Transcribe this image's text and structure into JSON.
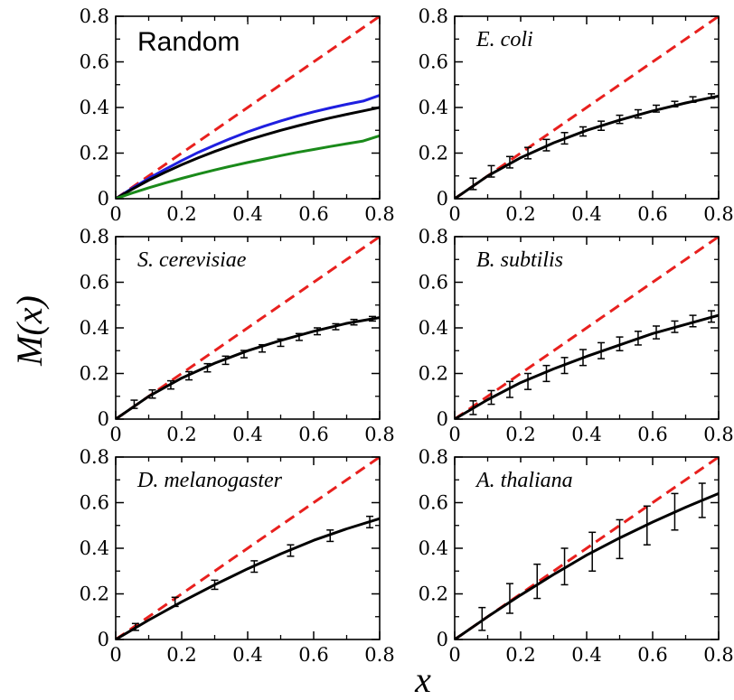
{
  "figure": {
    "ylabel": "M(x)",
    "xlabel": "x"
  },
  "colors": {
    "diagonal": "#e8201e",
    "fit": "#000000",
    "blue": "#1f1fe0",
    "green": "#1a8a1a"
  },
  "chart_data": [
    {
      "type": "line",
      "title": "Random",
      "xlim": [
        0,
        0.8
      ],
      "ylim": [
        0,
        0.8
      ],
      "xticks": [
        "0",
        "0.2",
        "0.4",
        "0.6",
        "0.8"
      ],
      "yticks": [
        "0",
        "0.2",
        "0.4",
        "0.6",
        "0.8"
      ],
      "series": [
        {
          "style": "dashed-red",
          "x": [
            0,
            0.8
          ],
          "y": [
            0,
            0.8
          ]
        },
        {
          "style": "solid-blue",
          "x": [
            0,
            0.05,
            0.1,
            0.15,
            0.2,
            0.25,
            0.3,
            0.35,
            0.4,
            0.45,
            0.5,
            0.55,
            0.6,
            0.65,
            0.7,
            0.75,
            0.8
          ],
          "y": [
            0,
            0.046,
            0.089,
            0.129,
            0.167,
            0.203,
            0.235,
            0.265,
            0.293,
            0.318,
            0.341,
            0.362,
            0.381,
            0.398,
            0.414,
            0.428,
            0.453
          ]
        },
        {
          "style": "solid-black",
          "x": [
            0,
            0.05,
            0.1,
            0.15,
            0.2,
            0.25,
            0.3,
            0.35,
            0.4,
            0.45,
            0.5,
            0.55,
            0.6,
            0.65,
            0.7,
            0.75,
            0.8
          ],
          "y": [
            0,
            0.042,
            0.081,
            0.116,
            0.149,
            0.179,
            0.207,
            0.233,
            0.257,
            0.279,
            0.3,
            0.319,
            0.337,
            0.354,
            0.37,
            0.385,
            0.4
          ]
        },
        {
          "style": "solid-green",
          "x": [
            0,
            0.05,
            0.1,
            0.15,
            0.2,
            0.25,
            0.3,
            0.35,
            0.4,
            0.45,
            0.5,
            0.55,
            0.6,
            0.65,
            0.7,
            0.75,
            0.8
          ],
          "y": [
            0,
            0.025,
            0.048,
            0.069,
            0.089,
            0.108,
            0.126,
            0.143,
            0.159,
            0.174,
            0.189,
            0.203,
            0.216,
            0.229,
            0.241,
            0.253,
            0.276
          ]
        }
      ]
    },
    {
      "type": "line",
      "title": "E. coli",
      "xlim": [
        0,
        0.8
      ],
      "ylim": [
        0,
        0.8
      ],
      "xticks": [
        "0",
        "0.2",
        "0.4",
        "0.6",
        "0.8"
      ],
      "yticks": [
        "0",
        "0.2",
        "0.4",
        "0.6",
        "0.8"
      ],
      "series": [
        {
          "style": "dashed-red",
          "x": [
            0,
            0.8
          ],
          "y": [
            0,
            0.8
          ]
        },
        {
          "style": "solid-black",
          "x": [
            0,
            0.1,
            0.2,
            0.3,
            0.4,
            0.5,
            0.6,
            0.7,
            0.8
          ],
          "y": [
            0,
            0.1,
            0.18,
            0.245,
            0.3,
            0.345,
            0.385,
            0.42,
            0.45
          ]
        },
        {
          "style": "errorbars",
          "x": [
            0.056,
            0.111,
            0.167,
            0.222,
            0.278,
            0.333,
            0.389,
            0.444,
            0.5,
            0.556,
            0.611,
            0.667,
            0.722,
            0.778
          ],
          "y": [
            0.065,
            0.12,
            0.16,
            0.2,
            0.235,
            0.265,
            0.295,
            0.32,
            0.348,
            0.372,
            0.395,
            0.415,
            0.435,
            0.45
          ],
          "err": [
            0.025,
            0.025,
            0.025,
            0.025,
            0.025,
            0.025,
            0.02,
            0.02,
            0.018,
            0.018,
            0.015,
            0.012,
            0.012,
            0.01
          ]
        }
      ]
    },
    {
      "type": "line",
      "title": "S. cerevisiae",
      "xlim": [
        0,
        0.8
      ],
      "ylim": [
        0,
        0.8
      ],
      "xticks": [
        "0",
        "0.2",
        "0.4",
        "0.6",
        "0.8"
      ],
      "yticks": [
        "0",
        "0.2",
        "0.4",
        "0.6",
        "0.8"
      ],
      "series": [
        {
          "style": "dashed-red",
          "x": [
            0,
            0.8
          ],
          "y": [
            0,
            0.8
          ]
        },
        {
          "style": "solid-black",
          "x": [
            0,
            0.1,
            0.2,
            0.3,
            0.4,
            0.5,
            0.6,
            0.7,
            0.8
          ],
          "y": [
            0,
            0.1,
            0.18,
            0.245,
            0.3,
            0.345,
            0.385,
            0.42,
            0.445
          ]
        },
        {
          "style": "errorbars",
          "x": [
            0.056,
            0.111,
            0.167,
            0.222,
            0.278,
            0.333,
            0.389,
            0.444,
            0.5,
            0.556,
            0.611,
            0.667,
            0.722,
            0.778
          ],
          "y": [
            0.065,
            0.11,
            0.15,
            0.19,
            0.225,
            0.258,
            0.285,
            0.31,
            0.335,
            0.36,
            0.385,
            0.405,
            0.425,
            0.44
          ],
          "err": [
            0.018,
            0.018,
            0.018,
            0.018,
            0.018,
            0.018,
            0.016,
            0.016,
            0.016,
            0.015,
            0.015,
            0.013,
            0.012,
            0.01
          ]
        }
      ]
    },
    {
      "type": "line",
      "title": "B. subtilis",
      "xlim": [
        0,
        0.8
      ],
      "ylim": [
        0,
        0.8
      ],
      "xticks": [
        "0",
        "0.2",
        "0.4",
        "0.6",
        "0.8"
      ],
      "yticks": [
        "0",
        "0.2",
        "0.4",
        "0.6",
        "0.8"
      ],
      "series": [
        {
          "style": "dashed-red",
          "x": [
            0,
            0.8
          ],
          "y": [
            0,
            0.8
          ]
        },
        {
          "style": "solid-black",
          "x": [
            0,
            0.1,
            0.2,
            0.3,
            0.4,
            0.5,
            0.6,
            0.7,
            0.8
          ],
          "y": [
            0,
            0.085,
            0.16,
            0.22,
            0.275,
            0.325,
            0.375,
            0.415,
            0.455
          ]
        },
        {
          "style": "errorbars",
          "x": [
            0.056,
            0.111,
            0.167,
            0.222,
            0.278,
            0.333,
            0.389,
            0.444,
            0.5,
            0.556,
            0.611,
            0.667,
            0.722,
            0.778
          ],
          "y": [
            0.05,
            0.095,
            0.13,
            0.165,
            0.2,
            0.235,
            0.27,
            0.3,
            0.33,
            0.355,
            0.38,
            0.405,
            0.43,
            0.45
          ],
          "err": [
            0.03,
            0.03,
            0.035,
            0.035,
            0.035,
            0.035,
            0.035,
            0.035,
            0.03,
            0.03,
            0.028,
            0.025,
            0.025,
            0.025
          ]
        }
      ]
    },
    {
      "type": "line",
      "title": "D. melanogaster",
      "xlim": [
        0,
        0.8
      ],
      "ylim": [
        0,
        0.8
      ],
      "xticks": [
        "0",
        "0.2",
        "0.4",
        "0.6",
        "0.8"
      ],
      "yticks": [
        "0",
        "0.2",
        "0.4",
        "0.6",
        "0.8"
      ],
      "series": [
        {
          "style": "dashed-red",
          "x": [
            0,
            0.8
          ],
          "y": [
            0,
            0.8
          ]
        },
        {
          "style": "solid-black",
          "x": [
            0,
            0.1,
            0.2,
            0.3,
            0.4,
            0.5,
            0.6,
            0.7,
            0.8
          ],
          "y": [
            0,
            0.085,
            0.165,
            0.24,
            0.31,
            0.375,
            0.435,
            0.485,
            0.53
          ]
        },
        {
          "style": "errorbars",
          "x": [
            0.06,
            0.18,
            0.3,
            0.42,
            0.53,
            0.65,
            0.77
          ],
          "y": [
            0.055,
            0.165,
            0.24,
            0.32,
            0.39,
            0.455,
            0.515
          ],
          "err": [
            0.015,
            0.02,
            0.02,
            0.025,
            0.025,
            0.025,
            0.025
          ]
        }
      ]
    },
    {
      "type": "line",
      "title": "A. thaliana",
      "xlim": [
        0,
        0.8
      ],
      "ylim": [
        0,
        0.8
      ],
      "xticks": [
        "0",
        "0.2",
        "0.4",
        "0.6",
        "0.8"
      ],
      "yticks": [
        "0",
        "0.2",
        "0.4",
        "0.6",
        "0.8"
      ],
      "series": [
        {
          "style": "dashed-red",
          "x": [
            0,
            0.8
          ],
          "y": [
            0,
            0.8
          ]
        },
        {
          "style": "solid-black",
          "x": [
            0,
            0.1,
            0.2,
            0.3,
            0.4,
            0.5,
            0.6,
            0.7,
            0.8
          ],
          "y": [
            0,
            0.1,
            0.195,
            0.285,
            0.37,
            0.445,
            0.515,
            0.58,
            0.64
          ]
        },
        {
          "style": "errorbars",
          "x": [
            0.083,
            0.167,
            0.25,
            0.333,
            0.417,
            0.5,
            0.583,
            0.667,
            0.75
          ],
          "y": [
            0.09,
            0.18,
            0.255,
            0.32,
            0.385,
            0.44,
            0.5,
            0.56,
            0.61
          ],
          "err": [
            0.05,
            0.065,
            0.075,
            0.08,
            0.085,
            0.085,
            0.085,
            0.08,
            0.075
          ]
        }
      ]
    }
  ]
}
